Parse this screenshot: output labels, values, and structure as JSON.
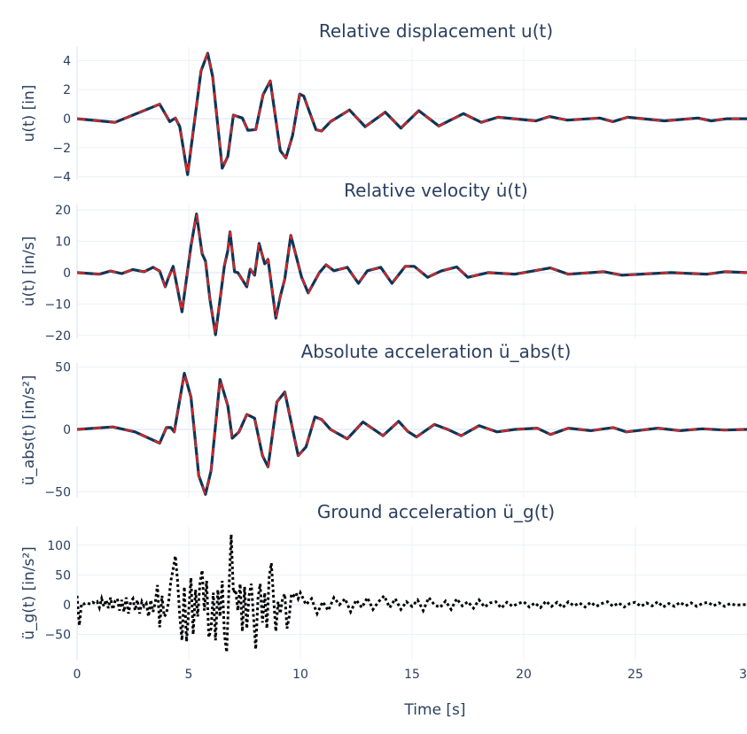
{
  "colors": {
    "response_solid": "#0e3556",
    "response_dashed": "#d62728",
    "ground": "#000000",
    "grid": "#ebf0f8",
    "text": "#2a3f5f"
  },
  "xaxis": {
    "label": "Time [s]",
    "range": [
      0,
      30
    ],
    "ticks": [
      0,
      5,
      10,
      15,
      20,
      25,
      30
    ],
    "tick_labels": [
      "0",
      "5",
      "10",
      "15",
      "20",
      "25",
      "30"
    ]
  },
  "chart_data": [
    {
      "type": "line",
      "title": "Relative displacement u(t)",
      "ylabel": "u(t) [in]",
      "ylim": [
        -4.2,
        4.94
      ],
      "yticks": [
        -4,
        -2,
        0,
        2,
        4
      ],
      "ytick_labels": [
        "−4",
        "−2",
        "0",
        "2",
        "4"
      ],
      "grid": true,
      "series": [
        {
          "style": "solid+dashed overlay",
          "points": [
            [
              0,
              0
            ],
            [
              1.7,
              -0.25
            ],
            [
              3.7,
              1.0
            ],
            [
              4.15,
              -0.2
            ],
            [
              4.4,
              0.05
            ],
            [
              4.6,
              -0.55
            ],
            [
              4.95,
              -3.85
            ],
            [
              5.55,
              3.3
            ],
            [
              5.85,
              4.5
            ],
            [
              6.07,
              2.9
            ],
            [
              6.5,
              -3.4
            ],
            [
              6.75,
              -2.6
            ],
            [
              7.0,
              0.25
            ],
            [
              7.4,
              0.05
            ],
            [
              7.65,
              -0.8
            ],
            [
              8.0,
              -0.75
            ],
            [
              8.33,
              1.65
            ],
            [
              8.65,
              2.6
            ],
            [
              9.1,
              -2.2
            ],
            [
              9.35,
              -2.7
            ],
            [
              9.65,
              -1.15
            ],
            [
              9.97,
              1.7
            ],
            [
              10.15,
              1.55
            ],
            [
              10.7,
              -0.75
            ],
            [
              10.95,
              -0.85
            ],
            [
              11.35,
              -0.2
            ],
            [
              12.2,
              0.6
            ],
            [
              12.9,
              -0.55
            ],
            [
              13.8,
              0.45
            ],
            [
              14.5,
              -0.65
            ],
            [
              15.3,
              0.55
            ],
            [
              16.2,
              -0.5
            ],
            [
              17.3,
              0.35
            ],
            [
              18.1,
              -0.25
            ],
            [
              18.85,
              0.1
            ],
            [
              20.55,
              -0.15
            ],
            [
              21.15,
              0.15
            ],
            [
              21.95,
              -0.1
            ],
            [
              23.4,
              0.05
            ],
            [
              24.0,
              -0.2
            ],
            [
              24.65,
              0.1
            ],
            [
              26.3,
              -0.15
            ],
            [
              27.8,
              0.05
            ],
            [
              28.4,
              -0.15
            ],
            [
              29.1,
              0
            ],
            [
              30,
              0
            ]
          ]
        }
      ]
    },
    {
      "type": "line",
      "title": "Relative velocity u̇(t)",
      "ylabel": "u̇(t) [in/s]",
      "ylim": [
        -21.2,
        22
      ],
      "yticks": [
        -20,
        -10,
        0,
        10,
        20
      ],
      "ytick_labels": [
        "−20",
        "−10",
        "0",
        "10",
        "20"
      ],
      "grid": true,
      "series": [
        {
          "style": "solid+dashed overlay",
          "points": [
            [
              0,
              0
            ],
            [
              1.0,
              -0.5
            ],
            [
              1.5,
              0.5
            ],
            [
              2.0,
              -0.3
            ],
            [
              2.5,
              1.0
            ],
            [
              3.0,
              0.3
            ],
            [
              3.4,
              1.7
            ],
            [
              3.7,
              0.5
            ],
            [
              3.95,
              -4.5
            ],
            [
              4.1,
              -1.5
            ],
            [
              4.3,
              2
            ],
            [
              4.7,
              -12.5
            ],
            [
              5.1,
              8.5
            ],
            [
              5.35,
              18.7
            ],
            [
              5.6,
              6
            ],
            [
              5.75,
              3.7
            ],
            [
              5.95,
              -8.5
            ],
            [
              6.2,
              -19.8
            ],
            [
              6.6,
              2.3
            ],
            [
              6.75,
              7
            ],
            [
              6.85,
              13
            ],
            [
              7.05,
              0.3
            ],
            [
              7.2,
              0
            ],
            [
              7.6,
              -4.5
            ],
            [
              7.75,
              1.1
            ],
            [
              7.95,
              -0.8
            ],
            [
              8.15,
              9.3
            ],
            [
              8.4,
              2.8
            ],
            [
              8.55,
              4.2
            ],
            [
              8.9,
              -14.5
            ],
            [
              9.1,
              -7.6
            ],
            [
              9.3,
              -2
            ],
            [
              9.57,
              11.9
            ],
            [
              10.05,
              -1.4
            ],
            [
              10.35,
              -6.5
            ],
            [
              10.85,
              0
            ],
            [
              11.15,
              2.5
            ],
            [
              11.5,
              0.6
            ],
            [
              12.1,
              1.7
            ],
            [
              12.6,
              -3.4
            ],
            [
              13.0,
              0.6
            ],
            [
              13.6,
              1.7
            ],
            [
              14.1,
              -3.4
            ],
            [
              14.7,
              2
            ],
            [
              15.1,
              2
            ],
            [
              15.7,
              -1.5
            ],
            [
              16.3,
              0.5
            ],
            [
              17.0,
              1.8
            ],
            [
              17.5,
              -1.5
            ],
            [
              18.4,
              0
            ],
            [
              19.6,
              -0.5
            ],
            [
              21.2,
              1.5
            ],
            [
              22.0,
              -0.5
            ],
            [
              23.6,
              0.3
            ],
            [
              24.4,
              -0.8
            ],
            [
              26.6,
              0
            ],
            [
              28.2,
              -0.5
            ],
            [
              29.0,
              0.3
            ],
            [
              30,
              0
            ]
          ]
        }
      ]
    },
    {
      "type": "line",
      "title": "Absolute acceleration ü_abs(t)",
      "ylabel": "ü_abs(t) [in/s²]",
      "ylim": [
        -54.6,
        53.2
      ],
      "yticks": [
        -50,
        0,
        50
      ],
      "ytick_labels": [
        "−50",
        "0",
        "50"
      ],
      "grid": true,
      "series": [
        {
          "style": "solid+dashed overlay",
          "points": [
            [
              0,
              0
            ],
            [
              1.6,
              2
            ],
            [
              2.6,
              -2
            ],
            [
              3.7,
              -11
            ],
            [
              4.0,
              1.5
            ],
            [
              4.2,
              1.5
            ],
            [
              4.35,
              -2
            ],
            [
              4.8,
              45
            ],
            [
              5.1,
              26
            ],
            [
              5.45,
              -37
            ],
            [
              5.75,
              -52
            ],
            [
              6.0,
              -33
            ],
            [
              6.4,
              40
            ],
            [
              6.75,
              19
            ],
            [
              6.95,
              -7
            ],
            [
              7.25,
              -2
            ],
            [
              7.6,
              12
            ],
            [
              7.95,
              9
            ],
            [
              8.3,
              -21
            ],
            [
              8.55,
              -30
            ],
            [
              8.95,
              22
            ],
            [
              9.3,
              30
            ],
            [
              9.9,
              -21
            ],
            [
              10.25,
              -14
            ],
            [
              10.65,
              10
            ],
            [
              10.95,
              8
            ],
            [
              11.35,
              0
            ],
            [
              12.1,
              -7.5
            ],
            [
              12.8,
              6
            ],
            [
              13.7,
              -5
            ],
            [
              14.4,
              6.5
            ],
            [
              14.8,
              -1.5
            ],
            [
              15.2,
              -6
            ],
            [
              16.0,
              4
            ],
            [
              16.6,
              0
            ],
            [
              17.2,
              -5
            ],
            [
              18.0,
              3
            ],
            [
              18.8,
              -2
            ],
            [
              19.6,
              0
            ],
            [
              20.6,
              1
            ],
            [
              21.2,
              -4
            ],
            [
              22.0,
              1
            ],
            [
              23.0,
              -1
            ],
            [
              24.0,
              1.5
            ],
            [
              24.6,
              -2
            ],
            [
              26.0,
              1
            ],
            [
              27.0,
              -1
            ],
            [
              28.0,
              0.5
            ],
            [
              29.0,
              -0.5
            ],
            [
              30,
              0
            ]
          ]
        }
      ]
    },
    {
      "type": "line",
      "title": "Ground acceleration ü_g(t)",
      "ylabel": "ü_g(t) [in/s²]",
      "ylim": [
        -92.5,
        131
      ],
      "yticks": [
        -50,
        0,
        50,
        100
      ],
      "ytick_labels": [
        "−50",
        "0",
        "50",
        "100"
      ],
      "grid": true,
      "series": [
        {
          "style": "dotted",
          "t": [
            0,
            0.1,
            0.2,
            0.3,
            0.4,
            0.5,
            0.6,
            0.7,
            0.8,
            0.9,
            1,
            1.1,
            1.2,
            1.3,
            1.4,
            1.5,
            1.6,
            1.7,
            1.8,
            1.9,
            2,
            2.1,
            2.2,
            2.3,
            2.4,
            2.5,
            2.6,
            2.7,
            2.8,
            2.9,
            3,
            3.1,
            3.2,
            3.3,
            3.4,
            3.5,
            3.6,
            3.7,
            3.8,
            3.9,
            4,
            4.1,
            4.2,
            4.3,
            4.4,
            4.5,
            4.6,
            4.7,
            4.8,
            4.9,
            5,
            5.1,
            5.2,
            5.3,
            5.4,
            5.5,
            5.6,
            5.7,
            5.8,
            5.9,
            6,
            6.1,
            6.2,
            6.3,
            6.4,
            6.5,
            6.6,
            6.7,
            6.8,
            6.9,
            7,
            7.1,
            7.2,
            7.3,
            7.4,
            7.5,
            7.6,
            7.7,
            7.8,
            7.9,
            8,
            8.1,
            8.2,
            8.3,
            8.4,
            8.5,
            8.6,
            8.7,
            8.8,
            8.9,
            9,
            9.1,
            9.2,
            9.3,
            9.4,
            9.5,
            9.6,
            9.7,
            9.8,
            9.9,
            10,
            10.25,
            10.5,
            10.75,
            11,
            11.25,
            11.5,
            11.75,
            12,
            12.25,
            12.5,
            12.75,
            13,
            13.25,
            13.5,
            13.75,
            14,
            14.25,
            14.5,
            14.75,
            15,
            15.25,
            15.5,
            15.75,
            16,
            16.25,
            16.5,
            16.75,
            17,
            17.25,
            17.5,
            17.75,
            18,
            18.25,
            18.5,
            18.75,
            19,
            19.25,
            19.5,
            19.75,
            20,
            20.25,
            20.5,
            20.75,
            21,
            21.25,
            21.5,
            21.75,
            22,
            22.25,
            22.5,
            22.75,
            23,
            23.25,
            23.5,
            23.75,
            24,
            24.25,
            24.5,
            24.75,
            25,
            25.25,
            25.5,
            25.75,
            26,
            26.25,
            26.5,
            26.75,
            27,
            27.25,
            27.5,
            27.75,
            28,
            28.25,
            28.5,
            28.75,
            29,
            29.25,
            29.5,
            29.75,
            30
          ],
          "values": [
            15,
            -35,
            2,
            1,
            3,
            2,
            1,
            4,
            2,
            5,
            -5,
            10,
            -3,
            8,
            -6,
            12,
            -8,
            6,
            10,
            -10,
            8,
            -12,
            12,
            -15,
            5,
            10,
            -10,
            8,
            -15,
            5,
            -3,
            2,
            -20,
            8,
            -12,
            3,
            33,
            -38,
            15,
            -20,
            -15,
            5,
            40,
            60,
            82,
            40,
            -20,
            -60,
            30,
            -62,
            -10,
            45,
            -50,
            25,
            -20,
            35,
            58,
            -10,
            40,
            -55,
            -40,
            20,
            -60,
            25,
            -20,
            40,
            -50,
            -80,
            28,
            118,
            20,
            25,
            -10,
            35,
            -45,
            30,
            -40,
            15,
            35,
            -20,
            -75,
            10,
            35,
            -30,
            20,
            -40,
            45,
            70,
            10,
            -45,
            5,
            -15,
            10,
            18,
            -40,
            -20,
            18,
            15,
            20,
            10,
            20,
            0,
            10,
            -15,
            5,
            -10,
            12,
            0,
            10,
            -12,
            8,
            -5,
            12,
            -8,
            5,
            15,
            -5,
            10,
            -8,
            5,
            -3,
            8,
            -10,
            12,
            0,
            -5,
            6,
            -8,
            10,
            -2,
            5,
            -6,
            8,
            -4,
            3,
            5,
            -6,
            4,
            -3,
            2,
            5,
            -4,
            3,
            -5,
            6,
            -3,
            4,
            -5,
            5,
            -2,
            3,
            -4,
            4,
            -3,
            2,
            5,
            -3,
            3,
            -4,
            2,
            4,
            -3,
            3,
            -2,
            5,
            -4,
            2,
            -3,
            4,
            -2,
            3,
            -3,
            2,
            4,
            -2,
            3,
            -3,
            2,
            -1,
            0,
            0
          ]
        }
      ]
    }
  ]
}
